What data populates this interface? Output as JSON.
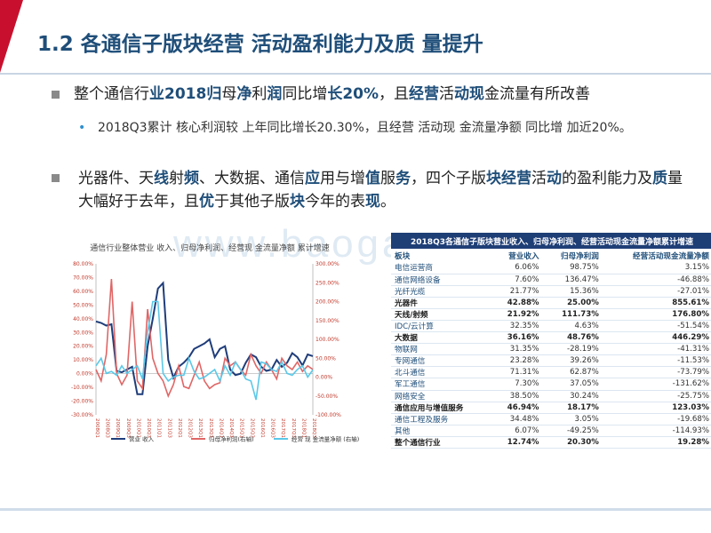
{
  "slide": {
    "title": "1.2 各通信子版块经营 活动盈利能力及质 量提升",
    "bullet1": {
      "parts": [
        "整个通信行",
        "业2018归",
        "母",
        "净",
        "利",
        "润",
        "同比增",
        "长20%",
        "，且",
        "经营",
        "活",
        "动现",
        "金流量有所改善"
      ]
    },
    "sub_text": "2018Q3累计 核心利润较 上年同比增长20.30%，且经营 活动现 金流量净额 同比增 加近20%。",
    "bullet2": {
      "parts": [
        "光器件、天",
        "线",
        "射",
        "频",
        "、大数据、通信",
        "应",
        "用与增",
        "值",
        "服",
        "务",
        "，四个子版",
        "块经营",
        "活",
        "动",
        "的盈利能力及",
        "质",
        "量大幅好于去年，且",
        "优",
        "于其他子版",
        "块",
        "今年的表",
        "现",
        "。"
      ]
    },
    "watermark": "www.baogao.com"
  },
  "chart_data": {
    "type": "line",
    "title": "通信行业整体营业 收入、归母净利润、经营现 金流量净额 累计增速",
    "x": [
      "2008Q1",
      "2008Q2",
      "2008Q3",
      "2008Q4",
      "2009Q1",
      "2009Q2",
      "2009Q3",
      "2009Q4",
      "2010Q1",
      "2010Q2",
      "2010Q3",
      "2010Q4",
      "2011Q1",
      "2011Q2",
      "2011Q3",
      "2011Q4",
      "2012Q1",
      "2012Q2",
      "2012Q3",
      "2012Q4",
      "2013Q1",
      "2013Q2",
      "2013Q3",
      "2013Q4",
      "2014Q1",
      "2014Q2",
      "2014Q3",
      "2014Q4",
      "2015Q1",
      "2015Q2",
      "2015Q3",
      "2015Q4",
      "2016Q1",
      "2016Q2",
      "2016Q3",
      "2016Q4",
      "2017Q1",
      "2017Q2",
      "2017Q3",
      "2017Q4",
      "2018Q1",
      "2018Q2",
      "2018Q3"
    ],
    "xticks": [
      "2008Q1",
      "2008Q3",
      "2009Q1",
      "2009Q3",
      "2010Q1",
      "2010Q3",
      "2011Q1",
      "2011Q3",
      "2012Q1",
      "2012Q3",
      "2013Q1",
      "2013Q3",
      "2014Q1",
      "2014Q3",
      "2015Q1",
      "2015Q3",
      "2016Q1",
      "2016Q3",
      "2017Q1",
      "2017Q3",
      "2018Q1",
      "2018Q3"
    ],
    "left_axis": {
      "ylim": [
        -30,
        80
      ],
      "ticks": [
        "80.00%",
        "70.00%",
        "60.00%",
        "50.00%",
        "40.00%",
        "30.00%",
        "20.00%",
        "10.00%",
        "0.00%",
        "-10.00%",
        "-20.00%",
        "-30.00%"
      ]
    },
    "right_axis": {
      "ylim": [
        -100,
        300
      ],
      "ticks": [
        "300.00%",
        "250.00%",
        "200.00%",
        "150.00%",
        "100.00%",
        "50.00%",
        "0.00%",
        "-50.00%",
        "-100.00%"
      ]
    },
    "series": [
      {
        "name": "营业 收入",
        "axis": "left",
        "color": "#1f3d7a",
        "values": [
          38,
          37,
          35,
          36,
          2,
          1,
          3,
          5,
          -15,
          -15,
          20,
          40,
          62,
          66,
          10,
          -3,
          5,
          8,
          12,
          18,
          20,
          22,
          25,
          12,
          18,
          20,
          3,
          -1,
          0,
          8,
          14,
          12,
          5,
          2,
          3,
          10,
          5,
          8,
          15,
          12,
          6,
          14,
          12.74
        ]
      },
      {
        "name": "归母净利润(右轴)",
        "axis": "right",
        "color": "#e06666",
        "values": [
          20,
          -10,
          60,
          260,
          10,
          -20,
          5,
          200,
          -10,
          -30,
          180,
          50,
          10,
          -10,
          -50,
          -20,
          30,
          -25,
          -30,
          5,
          40,
          -10,
          -30,
          -20,
          -15,
          50,
          30,
          40,
          20,
          5,
          60,
          30,
          10,
          40,
          20,
          -5,
          50,
          30,
          20,
          40,
          15,
          30,
          20.3
        ]
      },
      {
        "name": "经营 现 金流量净额 (右轴)",
        "axis": "right",
        "color": "#5bc8e8",
        "values": [
          30,
          50,
          10,
          15,
          5,
          30,
          10,
          20,
          30,
          -5,
          120,
          200,
          200,
          10,
          -10,
          0,
          5,
          5,
          50,
          15,
          -5,
          0,
          10,
          20,
          -10,
          30,
          5,
          40,
          20,
          -5,
          -10,
          -60,
          40,
          35,
          20,
          15,
          40,
          10,
          5,
          20,
          30,
          0,
          19.28
        ]
      }
    ]
  },
  "table": {
    "caption": "2018Q3各通信子版块营业收入、归母净利润、经营活动现金流量净额累计增速",
    "headers": [
      "板块",
      "营业收入",
      "归母净利润",
      "经营活动现金流量净额"
    ],
    "rows": [
      {
        "name": "电信运营商",
        "c1": "6.06%",
        "c2": "98.75%",
        "c3": "3.15%",
        "bold": false
      },
      {
        "name": "通信网络设备",
        "c1": "7.60%",
        "c2": "136.47%",
        "c3": "-46.88%",
        "bold": false
      },
      {
        "name": "光纤光缆",
        "c1": "21.77%",
        "c2": "15.36%",
        "c3": "-27.01%",
        "bold": false
      },
      {
        "name": "光器件",
        "c1": "42.88%",
        "c2": "25.00%",
        "c3": "855.61%",
        "bold": true
      },
      {
        "name": "天线/射频",
        "c1": "21.92%",
        "c2": "111.73%",
        "c3": "176.80%",
        "bold": true
      },
      {
        "name": "IDC/云计算",
        "c1": "32.35%",
        "c2": "4.63%",
        "c3": "-51.54%",
        "bold": false
      },
      {
        "name": "大数据",
        "c1": "36.16%",
        "c2": "48.76%",
        "c3": "446.29%",
        "bold": true
      },
      {
        "name": "物联网",
        "c1": "31.35%",
        "c2": "-28.19%",
        "c3": "-41.31%",
        "bold": false
      },
      {
        "name": "专网通信",
        "c1": "23.28%",
        "c2": "39.26%",
        "c3": "-11.53%",
        "bold": false
      },
      {
        "name": "北斗通信",
        "c1": "71.31%",
        "c2": "62.87%",
        "c3": "-73.79%",
        "bold": false
      },
      {
        "name": "军工通信",
        "c1": "7.30%",
        "c2": "37.05%",
        "c3": "-131.62%",
        "bold": false
      },
      {
        "name": "网络安全",
        "c1": "38.50%",
        "c2": "30.24%",
        "c3": "-25.75%",
        "bold": false
      },
      {
        "name": "通信应用与增值服务",
        "c1": "46.94%",
        "c2": "18.17%",
        "c3": "123.03%",
        "bold": true
      },
      {
        "name": "通信工程及服务",
        "c1": "34.48%",
        "c2": "3.05%",
        "c3": "-19.68%",
        "bold": false
      },
      {
        "name": "其他",
        "c1": "6.07%",
        "c2": "-49.25%",
        "c3": "-114.93%",
        "bold": false
      },
      {
        "name": "整个通信行业",
        "c1": "12.74%",
        "c2": "20.30%",
        "c3": "19.28%",
        "bold": true
      }
    ]
  }
}
